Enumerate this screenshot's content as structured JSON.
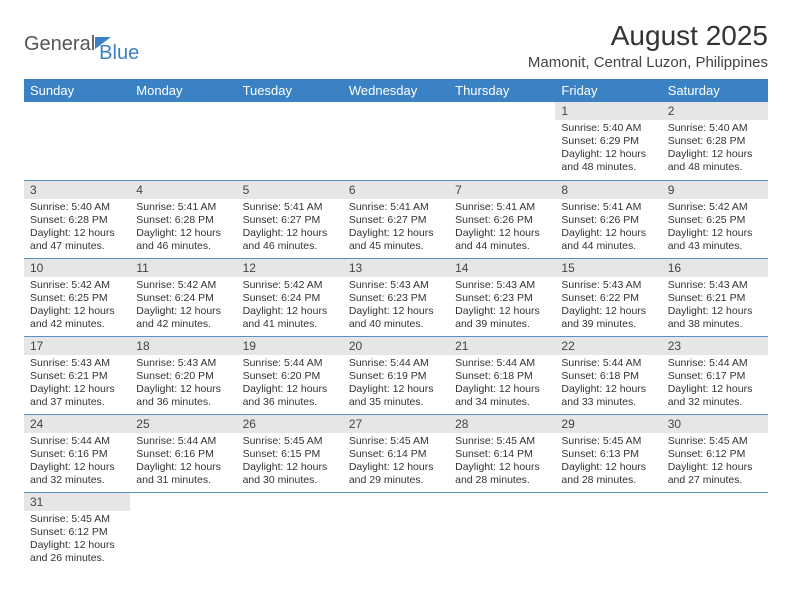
{
  "logo": {
    "text1": "General",
    "text2": "Blue"
  },
  "title": "August 2025",
  "location": "Mamonit, Central Luzon, Philippines",
  "day_headers": [
    "Sunday",
    "Monday",
    "Tuesday",
    "Wednesday",
    "Thursday",
    "Friday",
    "Saturday"
  ],
  "colors": {
    "header_bg": "#3b82c4",
    "header_text": "#ffffff",
    "daynum_bg": "#e6e6e6",
    "row_border": "#5a8fc0",
    "body_text": "#333333"
  },
  "weeks": [
    [
      {
        "n": "",
        "sunrise": "",
        "sunset": "",
        "daylight": ""
      },
      {
        "n": "",
        "sunrise": "",
        "sunset": "",
        "daylight": ""
      },
      {
        "n": "",
        "sunrise": "",
        "sunset": "",
        "daylight": ""
      },
      {
        "n": "",
        "sunrise": "",
        "sunset": "",
        "daylight": ""
      },
      {
        "n": "",
        "sunrise": "",
        "sunset": "",
        "daylight": ""
      },
      {
        "n": "1",
        "sunrise": "Sunrise: 5:40 AM",
        "sunset": "Sunset: 6:29 PM",
        "daylight": "Daylight: 12 hours and 48 minutes."
      },
      {
        "n": "2",
        "sunrise": "Sunrise: 5:40 AM",
        "sunset": "Sunset: 6:28 PM",
        "daylight": "Daylight: 12 hours and 48 minutes."
      }
    ],
    [
      {
        "n": "3",
        "sunrise": "Sunrise: 5:40 AM",
        "sunset": "Sunset: 6:28 PM",
        "daylight": "Daylight: 12 hours and 47 minutes."
      },
      {
        "n": "4",
        "sunrise": "Sunrise: 5:41 AM",
        "sunset": "Sunset: 6:28 PM",
        "daylight": "Daylight: 12 hours and 46 minutes."
      },
      {
        "n": "5",
        "sunrise": "Sunrise: 5:41 AM",
        "sunset": "Sunset: 6:27 PM",
        "daylight": "Daylight: 12 hours and 46 minutes."
      },
      {
        "n": "6",
        "sunrise": "Sunrise: 5:41 AM",
        "sunset": "Sunset: 6:27 PM",
        "daylight": "Daylight: 12 hours and 45 minutes."
      },
      {
        "n": "7",
        "sunrise": "Sunrise: 5:41 AM",
        "sunset": "Sunset: 6:26 PM",
        "daylight": "Daylight: 12 hours and 44 minutes."
      },
      {
        "n": "8",
        "sunrise": "Sunrise: 5:41 AM",
        "sunset": "Sunset: 6:26 PM",
        "daylight": "Daylight: 12 hours and 44 minutes."
      },
      {
        "n": "9",
        "sunrise": "Sunrise: 5:42 AM",
        "sunset": "Sunset: 6:25 PM",
        "daylight": "Daylight: 12 hours and 43 minutes."
      }
    ],
    [
      {
        "n": "10",
        "sunrise": "Sunrise: 5:42 AM",
        "sunset": "Sunset: 6:25 PM",
        "daylight": "Daylight: 12 hours and 42 minutes."
      },
      {
        "n": "11",
        "sunrise": "Sunrise: 5:42 AM",
        "sunset": "Sunset: 6:24 PM",
        "daylight": "Daylight: 12 hours and 42 minutes."
      },
      {
        "n": "12",
        "sunrise": "Sunrise: 5:42 AM",
        "sunset": "Sunset: 6:24 PM",
        "daylight": "Daylight: 12 hours and 41 minutes."
      },
      {
        "n": "13",
        "sunrise": "Sunrise: 5:43 AM",
        "sunset": "Sunset: 6:23 PM",
        "daylight": "Daylight: 12 hours and 40 minutes."
      },
      {
        "n": "14",
        "sunrise": "Sunrise: 5:43 AM",
        "sunset": "Sunset: 6:23 PM",
        "daylight": "Daylight: 12 hours and 39 minutes."
      },
      {
        "n": "15",
        "sunrise": "Sunrise: 5:43 AM",
        "sunset": "Sunset: 6:22 PM",
        "daylight": "Daylight: 12 hours and 39 minutes."
      },
      {
        "n": "16",
        "sunrise": "Sunrise: 5:43 AM",
        "sunset": "Sunset: 6:21 PM",
        "daylight": "Daylight: 12 hours and 38 minutes."
      }
    ],
    [
      {
        "n": "17",
        "sunrise": "Sunrise: 5:43 AM",
        "sunset": "Sunset: 6:21 PM",
        "daylight": "Daylight: 12 hours and 37 minutes."
      },
      {
        "n": "18",
        "sunrise": "Sunrise: 5:43 AM",
        "sunset": "Sunset: 6:20 PM",
        "daylight": "Daylight: 12 hours and 36 minutes."
      },
      {
        "n": "19",
        "sunrise": "Sunrise: 5:44 AM",
        "sunset": "Sunset: 6:20 PM",
        "daylight": "Daylight: 12 hours and 36 minutes."
      },
      {
        "n": "20",
        "sunrise": "Sunrise: 5:44 AM",
        "sunset": "Sunset: 6:19 PM",
        "daylight": "Daylight: 12 hours and 35 minutes."
      },
      {
        "n": "21",
        "sunrise": "Sunrise: 5:44 AM",
        "sunset": "Sunset: 6:18 PM",
        "daylight": "Daylight: 12 hours and 34 minutes."
      },
      {
        "n": "22",
        "sunrise": "Sunrise: 5:44 AM",
        "sunset": "Sunset: 6:18 PM",
        "daylight": "Daylight: 12 hours and 33 minutes."
      },
      {
        "n": "23",
        "sunrise": "Sunrise: 5:44 AM",
        "sunset": "Sunset: 6:17 PM",
        "daylight": "Daylight: 12 hours and 32 minutes."
      }
    ],
    [
      {
        "n": "24",
        "sunrise": "Sunrise: 5:44 AM",
        "sunset": "Sunset: 6:16 PM",
        "daylight": "Daylight: 12 hours and 32 minutes."
      },
      {
        "n": "25",
        "sunrise": "Sunrise: 5:44 AM",
        "sunset": "Sunset: 6:16 PM",
        "daylight": "Daylight: 12 hours and 31 minutes."
      },
      {
        "n": "26",
        "sunrise": "Sunrise: 5:45 AM",
        "sunset": "Sunset: 6:15 PM",
        "daylight": "Daylight: 12 hours and 30 minutes."
      },
      {
        "n": "27",
        "sunrise": "Sunrise: 5:45 AM",
        "sunset": "Sunset: 6:14 PM",
        "daylight": "Daylight: 12 hours and 29 minutes."
      },
      {
        "n": "28",
        "sunrise": "Sunrise: 5:45 AM",
        "sunset": "Sunset: 6:14 PM",
        "daylight": "Daylight: 12 hours and 28 minutes."
      },
      {
        "n": "29",
        "sunrise": "Sunrise: 5:45 AM",
        "sunset": "Sunset: 6:13 PM",
        "daylight": "Daylight: 12 hours and 28 minutes."
      },
      {
        "n": "30",
        "sunrise": "Sunrise: 5:45 AM",
        "sunset": "Sunset: 6:12 PM",
        "daylight": "Daylight: 12 hours and 27 minutes."
      }
    ],
    [
      {
        "n": "31",
        "sunrise": "Sunrise: 5:45 AM",
        "sunset": "Sunset: 6:12 PM",
        "daylight": "Daylight: 12 hours and 26 minutes."
      },
      {
        "n": "",
        "sunrise": "",
        "sunset": "",
        "daylight": ""
      },
      {
        "n": "",
        "sunrise": "",
        "sunset": "",
        "daylight": ""
      },
      {
        "n": "",
        "sunrise": "",
        "sunset": "",
        "daylight": ""
      },
      {
        "n": "",
        "sunrise": "",
        "sunset": "",
        "daylight": ""
      },
      {
        "n": "",
        "sunrise": "",
        "sunset": "",
        "daylight": ""
      },
      {
        "n": "",
        "sunrise": "",
        "sunset": "",
        "daylight": ""
      }
    ]
  ]
}
